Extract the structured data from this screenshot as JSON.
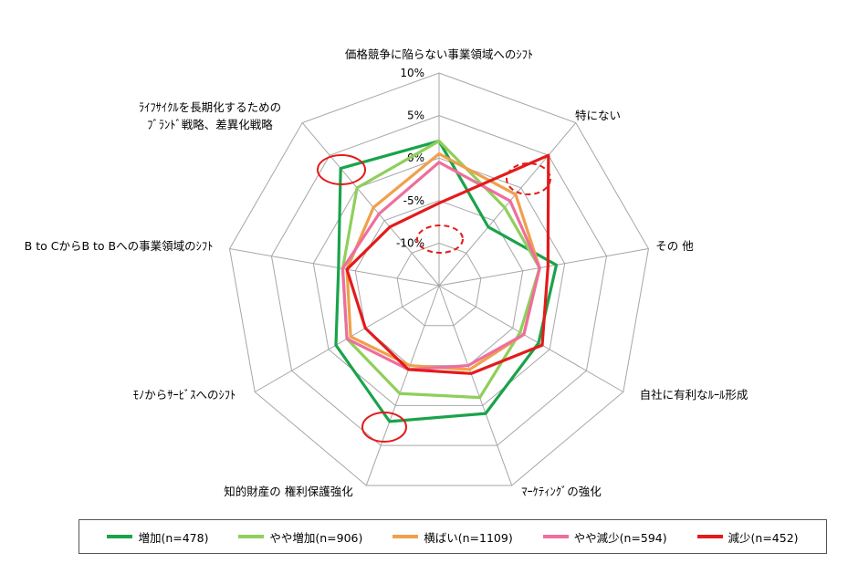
{
  "chart_data": {
    "type": "radar",
    "title": "",
    "axes": [
      "価格競争に陥らない事業領域へのｼﾌﾄ",
      "特にない",
      "その 他",
      "自社に有利なﾙｰﾙ形成",
      "ﾏｰｹﾃｨﾝｸﾞの強化",
      "知的財産の 権利保護強化",
      "ﾓﾉからｻｰﾋﾞｽへのｼﾌﾄ",
      "B to CからB to Bへの事業領域のｼﾌﾄ",
      "ﾗｲﾌｻｲｸﾙを長期化するための\nﾌﾞﾗﾝﾄﾞ戦略、差異化戦略"
    ],
    "tick_labels": [
      "10%",
      "5%",
      "0%",
      "-5%",
      "-10%"
    ],
    "ticks": [
      10,
      5,
      0,
      -5,
      -10
    ],
    "rlim": [
      -15,
      10
    ],
    "grid": true,
    "series": [
      {
        "name": "増加(n=478)",
        "color": "#1aa34a",
        "values": [
          2.0,
          -6.0,
          -1.0,
          -1.5,
          1.0,
          2.0,
          -1.0,
          -3.0,
          3.0
        ]
      },
      {
        "name": "やや増加(n=906)",
        "color": "#8fcf5c",
        "values": [
          2.0,
          -3.0,
          -3.0,
          -4.0,
          -1.0,
          -1.5,
          -2.5,
          -3.5,
          0.0
        ]
      },
      {
        "name": "横ばい(n=1109)",
        "color": "#f0a04b",
        "values": [
          0.5,
          -1.0,
          -3.0,
          -3.5,
          -4.5,
          -5.0,
          -3.0,
          -4.0,
          -3.0
        ]
      },
      {
        "name": "やや減少(n=594)",
        "color": "#ee6e9d",
        "values": [
          -0.5,
          -2.0,
          -3.0,
          -3.5,
          -5.0,
          -4.5,
          -2.5,
          -3.5,
          -4.0
        ]
      },
      {
        "name": "減少(n=452)",
        "color": "#e31b1b",
        "values": [
          -5.3,
          5.0,
          -2.0,
          -1.0,
          -4.0,
          -4.5,
          -5.0,
          -4.0,
          -6.0
        ]
      }
    ],
    "legend": {
      "position": "bottom"
    }
  }
}
